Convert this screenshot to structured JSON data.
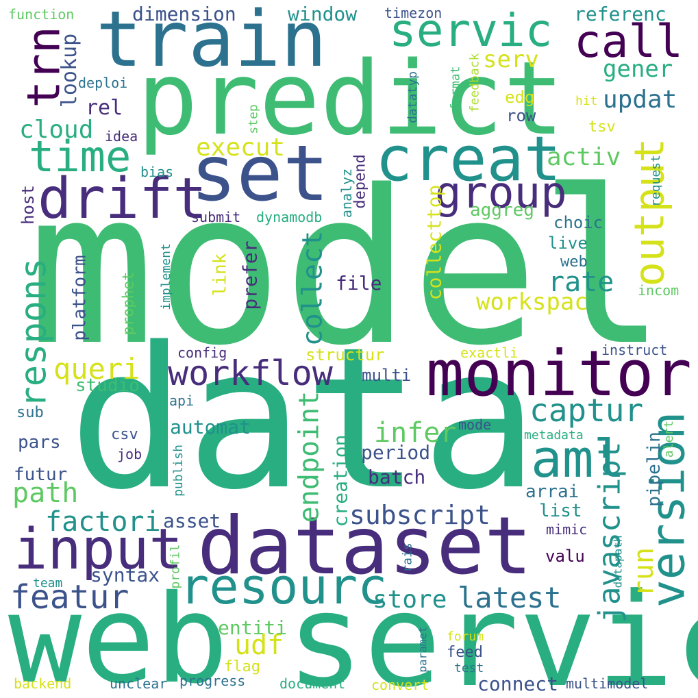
{
  "palette": {
    "dark_purple": "#440154",
    "indigo": "#472d7b",
    "dark_blue": "#3b528b",
    "blue": "#2c728e",
    "teal": "#21918c",
    "green_teal": "#28ae80",
    "green": "#3fbc73",
    "light_green": "#5ec962",
    "lime": "#addc30",
    "yellow": "#d5e21a",
    "background": "#ffffff"
  },
  "words": [
    {
      "text": "model",
      "color": "green",
      "orientation": "horizontal"
    },
    {
      "text": "data",
      "color": "green_teal",
      "orientation": "horizontal"
    },
    {
      "text": "web",
      "color": "green_teal",
      "orientation": "horizontal"
    },
    {
      "text": "servic",
      "color": "green_teal",
      "orientation": "horizontal"
    },
    {
      "text": "predict",
      "color": "green",
      "orientation": "horizontal"
    },
    {
      "text": "dataset",
      "color": "indigo",
      "orientation": "horizontal"
    },
    {
      "text": "train",
      "color": "blue",
      "orientation": "horizontal"
    },
    {
      "text": "set",
      "color": "dark_blue",
      "orientation": "horizontal"
    },
    {
      "text": "monitor",
      "color": "dark_purple",
      "orientation": "horizontal"
    },
    {
      "text": "creat",
      "color": "teal",
      "orientation": "horizontal"
    },
    {
      "text": "drift",
      "color": "indigo",
      "orientation": "horizontal"
    },
    {
      "text": "input",
      "color": "indigo",
      "orientation": "horizontal"
    },
    {
      "text": "resourc",
      "color": "teal",
      "orientation": "horizontal"
    },
    {
      "text": "aml",
      "color": "teal",
      "orientation": "horizontal"
    },
    {
      "text": "servic",
      "color": "green_teal",
      "orientation": "horizontal"
    },
    {
      "text": "version",
      "color": "teal",
      "orientation": "vertical"
    },
    {
      "text": "call",
      "color": "dark_purple",
      "orientation": "horizontal"
    },
    {
      "text": "trn",
      "color": "dark_purple",
      "orientation": "vertical"
    },
    {
      "text": "time",
      "color": "green_teal",
      "orientation": "horizontal"
    },
    {
      "text": "group",
      "color": "indigo",
      "orientation": "horizontal"
    },
    {
      "text": "output",
      "color": "yellow",
      "orientation": "vertical"
    },
    {
      "text": "respons",
      "color": "green_teal",
      "orientation": "vertical"
    },
    {
      "text": "workflow",
      "color": "indigo",
      "orientation": "horizontal"
    },
    {
      "text": "featur",
      "color": "dark_blue",
      "orientation": "horizontal"
    },
    {
      "text": "javascript",
      "color": "teal",
      "orientation": "vertical"
    },
    {
      "text": "captur",
      "color": "teal",
      "orientation": "horizontal"
    },
    {
      "text": "latest",
      "color": "blue",
      "orientation": "horizontal"
    },
    {
      "text": "subscript",
      "color": "dark_blue",
      "orientation": "horizontal"
    },
    {
      "text": "workspac",
      "color": "yellow",
      "orientation": "horizontal"
    },
    {
      "text": "rate",
      "color": "teal",
      "orientation": "horizontal"
    },
    {
      "text": "endpoint",
      "color": "green",
      "orientation": "vertical"
    },
    {
      "text": "collect",
      "color": "teal",
      "orientation": "vertical"
    },
    {
      "text": "queri",
      "color": "yellow",
      "orientation": "horizontal"
    },
    {
      "text": "factori",
      "color": "teal",
      "orientation": "horizontal"
    },
    {
      "text": "path",
      "color": "light_green",
      "orientation": "horizontal"
    },
    {
      "text": "infer",
      "color": "light_green",
      "orientation": "horizontal"
    },
    {
      "text": "udf",
      "color": "yellow",
      "orientation": "horizontal"
    },
    {
      "text": "run",
      "color": "yellow",
      "orientation": "vertical"
    },
    {
      "text": "store",
      "color": "teal",
      "orientation": "horizontal"
    },
    {
      "text": "execut",
      "color": "yellow",
      "orientation": "horizontal"
    },
    {
      "text": "cloud",
      "color": "green_teal",
      "orientation": "horizontal"
    },
    {
      "text": "updat",
      "color": "blue",
      "orientation": "horizontal"
    },
    {
      "text": "activ",
      "color": "light_green",
      "orientation": "horizontal"
    },
    {
      "text": "gener",
      "color": "green_teal",
      "orientation": "horizontal"
    },
    {
      "text": "serv",
      "color": "yellow",
      "orientation": "horizontal"
    },
    {
      "text": "rel",
      "color": "indigo",
      "orientation": "horizontal"
    },
    {
      "text": "lookup",
      "color": "dark_blue",
      "orientation": "vertical"
    },
    {
      "text": "window",
      "color": "teal",
      "orientation": "horizontal"
    },
    {
      "text": "dimension",
      "color": "dark_blue",
      "orientation": "horizontal"
    },
    {
      "text": "referenc",
      "color": "teal",
      "orientation": "horizontal"
    },
    {
      "text": "creation",
      "color": "green_teal",
      "orientation": "vertical"
    },
    {
      "text": "prefer",
      "color": "indigo",
      "orientation": "vertical"
    },
    {
      "text": "collecttop",
      "color": "yellow",
      "orientation": "vertical"
    },
    {
      "text": "connect",
      "color": "dark_blue",
      "orientation": "horizontal"
    },
    {
      "text": "entiti",
      "color": "light_green",
      "orientation": "horizontal"
    },
    {
      "text": "platform",
      "color": "dark_blue",
      "orientation": "vertical"
    },
    {
      "text": "file",
      "color": "indigo",
      "orientation": "horizontal"
    },
    {
      "text": "link",
      "color": "yellow",
      "orientation": "vertical"
    },
    {
      "text": "batch",
      "color": "indigo",
      "orientation": "horizontal"
    },
    {
      "text": "period",
      "color": "dark_blue",
      "orientation": "horizontal"
    },
    {
      "text": "automat",
      "color": "teal",
      "orientation": "horizontal"
    },
    {
      "text": "structur",
      "color": "yellow",
      "orientation": "horizontal"
    },
    {
      "text": "syntax",
      "color": "dark_blue",
      "orientation": "horizontal"
    },
    {
      "text": "asset",
      "color": "dark_blue",
      "orientation": "horizontal"
    },
    {
      "text": "arrai",
      "color": "blue",
      "orientation": "horizontal"
    },
    {
      "text": "list",
      "color": "teal",
      "orientation": "horizontal"
    },
    {
      "text": "pipelin",
      "color": "blue",
      "orientation": "vertical"
    },
    {
      "text": "futur",
      "color": "dark_blue",
      "orientation": "horizontal"
    },
    {
      "text": "pars",
      "color": "dark_blue",
      "orientation": "horizontal"
    },
    {
      "text": "studio",
      "color": "green",
      "orientation": "horizontal"
    },
    {
      "text": "multi",
      "color": "dark_blue",
      "orientation": "horizontal"
    },
    {
      "text": "choic",
      "color": "blue",
      "orientation": "horizontal"
    },
    {
      "text": "live",
      "color": "teal",
      "orientation": "horizontal"
    },
    {
      "text": "web",
      "color": "blue",
      "orientation": "horizontal"
    },
    {
      "text": "aggreg",
      "color": "light_green",
      "orientation": "horizontal"
    },
    {
      "text": "valu",
      "color": "dark_purple",
      "orientation": "horizontal"
    },
    {
      "text": "edg",
      "color": "yellow",
      "orientation": "horizontal"
    },
    {
      "text": "row",
      "color": "dark_blue",
      "orientation": "horizontal"
    },
    {
      "text": "tsv",
      "color": "yellow",
      "orientation": "horizontal"
    },
    {
      "text": "host",
      "color": "indigo",
      "orientation": "vertical"
    },
    {
      "text": "depend",
      "color": "indigo",
      "orientation": "vertical"
    },
    {
      "text": "prophet",
      "color": "light_green",
      "orientation": "vertical"
    },
    {
      "text": "csv",
      "color": "dark_blue",
      "orientation": "horizontal"
    },
    {
      "text": "feed",
      "color": "dark_blue",
      "orientation": "horizontal"
    },
    {
      "text": "flag",
      "color": "yellow",
      "orientation": "horizontal"
    },
    {
      "text": "sub",
      "color": "blue",
      "orientation": "horizontal"
    },
    {
      "text": "job",
      "color": "indigo",
      "orientation": "horizontal"
    },
    {
      "text": "mode",
      "color": "dark_blue",
      "orientation": "horizontal"
    },
    {
      "text": "mimic",
      "color": "indigo",
      "orientation": "horizontal"
    },
    {
      "text": "dynamodb",
      "color": "green_teal",
      "orientation": "horizontal"
    },
    {
      "text": "submit",
      "color": "indigo",
      "orientation": "horizontal"
    },
    {
      "text": "analyz",
      "color": "teal",
      "orientation": "vertical"
    },
    {
      "text": "config",
      "color": "indigo",
      "orientation": "horizontal"
    },
    {
      "text": "api",
      "color": "blue",
      "orientation": "horizontal"
    },
    {
      "text": "exactli",
      "color": "yellow",
      "orientation": "horizontal"
    },
    {
      "text": "instruct",
      "color": "dark_blue",
      "orientation": "horizontal"
    },
    {
      "text": "metadata",
      "color": "green_teal",
      "orientation": "horizontal"
    },
    {
      "text": "alert",
      "color": "light_green",
      "orientation": "vertical"
    },
    {
      "text": "incom",
      "color": "light_green",
      "orientation": "horizontal"
    },
    {
      "text": "request",
      "color": "teal",
      "orientation": "vertical"
    },
    {
      "text": "implement",
      "color": "teal",
      "orientation": "vertical"
    },
    {
      "text": "publish",
      "color": "teal",
      "orientation": "vertical"
    },
    {
      "text": "profil",
      "color": "light_green",
      "orientation": "vertical"
    },
    {
      "text": "datapath",
      "color": "teal",
      "orientation": "vertical"
    },
    {
      "text": "rais",
      "color": "blue",
      "orientation": "vertical"
    },
    {
      "text": "paramet",
      "color": "blue",
      "orientation": "vertical"
    },
    {
      "text": "team",
      "color": "teal",
      "orientation": "horizontal"
    },
    {
      "text": "bias",
      "color": "teal",
      "orientation": "horizontal"
    },
    {
      "text": "idea",
      "color": "indigo",
      "orientation": "horizontal"
    },
    {
      "text": "deploi",
      "color": "blue",
      "orientation": "horizontal"
    },
    {
      "text": "step",
      "color": "light_green",
      "orientation": "vertical"
    },
    {
      "text": "datatyp",
      "color": "blue",
      "orientation": "vertical"
    },
    {
      "text": "format",
      "color": "green",
      "orientation": "vertical"
    },
    {
      "text": "feedback",
      "color": "lime",
      "orientation": "vertical"
    },
    {
      "text": "hit",
      "color": "yellow",
      "orientation": "horizontal"
    },
    {
      "text": "timezon",
      "color": "dark_blue",
      "orientation": "horizontal"
    },
    {
      "text": "function",
      "color": "light_green",
      "orientation": "horizontal"
    },
    {
      "text": "backend",
      "color": "yellow",
      "orientation": "horizontal"
    },
    {
      "text": "unclear",
      "color": "blue",
      "orientation": "horizontal"
    },
    {
      "text": "progress",
      "color": "blue",
      "orientation": "horizontal"
    },
    {
      "text": "document",
      "color": "green_teal",
      "orientation": "horizontal"
    },
    {
      "text": "convert",
      "color": "yellow",
      "orientation": "horizontal"
    },
    {
      "text": "multimodel",
      "color": "dark_blue",
      "orientation": "horizontal"
    },
    {
      "text": "forum",
      "color": "yellow",
      "orientation": "horizontal"
    },
    {
      "text": "test",
      "color": "blue",
      "orientation": "horizontal"
    }
  ]
}
